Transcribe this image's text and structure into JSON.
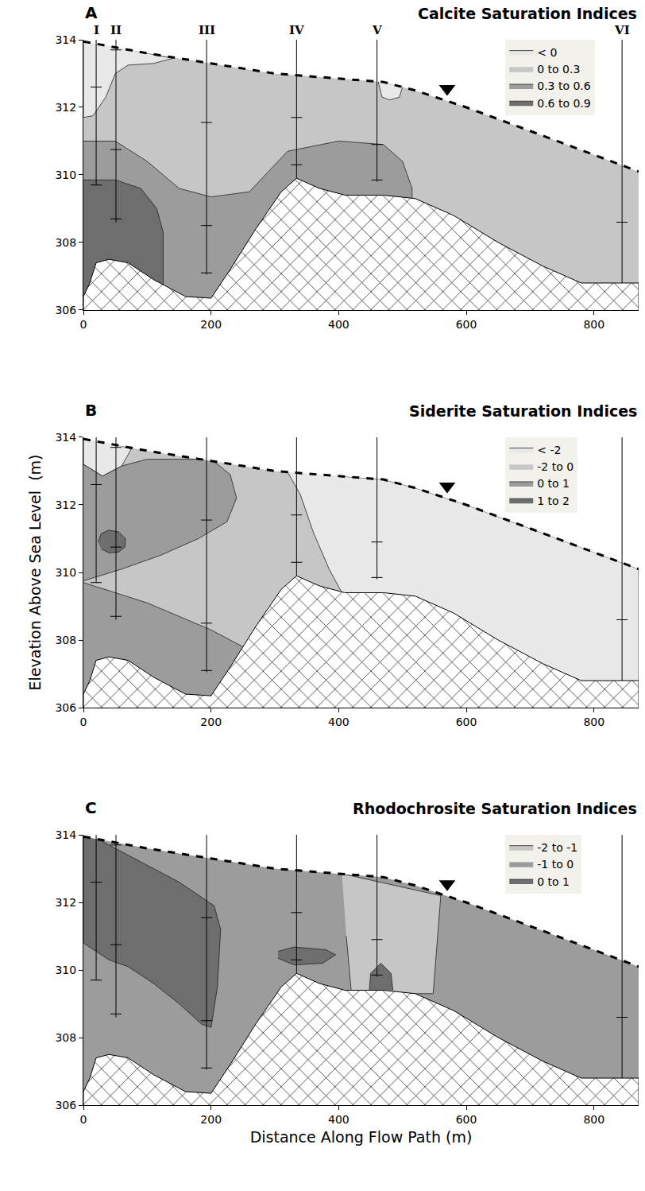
{
  "chart_data": {
    "type": "cross_section",
    "xlabel": "Distance Along Flow Path (m)",
    "ylabel": "Elevation Above Sea Level  (m)",
    "xlim": [
      0,
      870
    ],
    "xticks": [
      0,
      200,
      400,
      600,
      800
    ],
    "ylim": [
      306,
      314
    ],
    "yticks": [
      306,
      308,
      310,
      312,
      314
    ],
    "surface": {
      "x": [
        0,
        100,
        200,
        300,
        400,
        470,
        520,
        600,
        700,
        800,
        870
      ],
      "y": [
        313.95,
        313.6,
        313.3,
        313.0,
        312.85,
        312.75,
        312.5,
        312.0,
        311.3,
        310.6,
        310.1
      ],
      "line_style": "dashed"
    },
    "water_table": {
      "x": 570,
      "y": 312.55,
      "marker": "triangle-down"
    },
    "bedrock": {
      "x": [
        0,
        0,
        10,
        20,
        40,
        70,
        110,
        160,
        200,
        230,
        270,
        310,
        334,
        370,
        410,
        470,
        520,
        580,
        650,
        720,
        780,
        870,
        870
      ],
      "y": [
        306,
        306.4,
        306.8,
        307.4,
        307.5,
        307.4,
        306.9,
        306.4,
        306.35,
        307.2,
        308.4,
        309.5,
        309.9,
        309.6,
        309.4,
        309.4,
        309.3,
        308.8,
        308.0,
        307.3,
        306.8,
        306.8,
        306
      ]
    },
    "wells": [
      {
        "name": "I",
        "x": 20,
        "bottom": 309.7,
        "samples": [
          312.6,
          309.7
        ]
      },
      {
        "name": "II",
        "x": 51,
        "bottom": 308.6,
        "samples": [
          313.7,
          310.75,
          308.7
        ]
      },
      {
        "name": "III",
        "x": 193,
        "bottom": 307.05,
        "samples": [
          311.55,
          308.5,
          307.1
        ]
      },
      {
        "name": "IV",
        "x": 334,
        "bottom": 309.9,
        "samples": [
          311.7,
          310.3
        ]
      },
      {
        "name": "V",
        "x": 460,
        "bottom": 309.8,
        "samples": [
          310.9,
          309.85
        ]
      },
      {
        "name": "VI",
        "x": 844,
        "bottom": 306.8,
        "samples": [
          308.6
        ]
      }
    ],
    "panels": [
      {
        "letter": "A",
        "title": "Calcite Saturation Indices",
        "legend": "top right",
        "classes": [
          {
            "name": "< 0",
            "color": "#e8e8e8",
            "regions": [
              {
                "x": [
                  0,
                  0,
                  15,
                  35,
                  50,
                  70,
                  110,
                  140,
                  100,
                  50
                ],
                "y": [
                  313.95,
                  311.7,
                  311.75,
                  312.3,
                  313.0,
                  313.25,
                  313.3,
                  313.45,
                  313.6,
                  313.8
                ]
              },
              {
                "x": [
                  462,
                  468,
                  480,
                  495,
                  500
                ],
                "y": [
                  312.75,
                  312.3,
                  312.22,
                  312.3,
                  312.6
                ]
              }
            ]
          },
          {
            "name": "0 to 0.3",
            "color": "#c6c6c6"
          },
          {
            "name": "0.3 to 0.6",
            "color": "#9c9c9c",
            "regions": [
              {
                "x": [
                  0,
                  50,
                  100,
                  150,
                  200,
                  260,
                  320,
                  400,
                  470,
                  500,
                  515,
                  515,
                  0
                ],
                "y": [
                  311.0,
                  311.0,
                  310.4,
                  309.6,
                  309.35,
                  309.5,
                  310.7,
                  311.0,
                  310.9,
                  310.4,
                  309.6,
                  306,
                  306
                ]
              }
            ]
          },
          {
            "name": "0.6 to 0.9",
            "color": "#6e6e6e",
            "regions": [
              {
                "x": [
                  0,
                  50,
                  90,
                  115,
                  125,
                  125,
                  0
                ],
                "y": [
                  309.85,
                  309.85,
                  309.6,
                  309.0,
                  308.3,
                  306,
                  306
                ]
              }
            ]
          }
        ]
      },
      {
        "letter": "B",
        "title": "Siderite Saturation Indices",
        "legend": "top right",
        "classes": [
          {
            "name": "< -2",
            "color": "#e8e8e8",
            "regions": [
              {
                "x": [
                  0,
                  0,
                  30,
                  60,
                  75,
                  50
                ],
                "y": [
                  313.95,
                  313.2,
                  312.85,
                  313.15,
                  313.65,
                  313.8
                ]
              },
              {
                "x": [
                  320,
                  340,
                  360,
                  385,
                  405,
                  405,
                  870,
                  870,
                  800,
                  700,
                  600,
                  520,
                  470,
                  400
                ],
                "y": [
                  312.97,
                  312.3,
                  311.2,
                  310.1,
                  309.4,
                  306,
                  306,
                  310.1,
                  310.6,
                  311.3,
                  312.0,
                  312.5,
                  312.75,
                  312.85
                ]
              }
            ]
          },
          {
            "name": "-2 to 0",
            "color": "#c6c6c6"
          },
          {
            "name": "0 to 1",
            "color": "#9c9c9c",
            "regions": [
              {
                "x": [
                  0,
                  30,
                  60,
                  100,
                  200,
                  230,
                  240,
                  225,
                  180,
                  120,
                  60,
                  0
                ],
                "y": [
                  313.2,
                  312.85,
                  313.15,
                  313.35,
                  313.35,
                  312.9,
                  312.2,
                  311.5,
                  311.0,
                  310.5,
                  310.1,
                  309.75
                ]
              },
              {
                "x": [
                  0,
                  100,
                  200,
                  270,
                  270,
                  0
                ],
                "y": [
                  309.7,
                  309.1,
                  308.3,
                  307.6,
                  306,
                  306
                ]
              }
            ]
          },
          {
            "name": "1 to 2",
            "color": "#6e6e6e",
            "regions": [
              {
                "x": [
                  23,
                  28,
                  40,
                  55,
                  66,
                  65,
                  55,
                  40,
                  28
                ],
                "y": [
                  310.9,
                  311.15,
                  311.25,
                  311.2,
                  311.0,
                  310.75,
                  310.6,
                  310.58,
                  310.7
                ]
              }
            ]
          }
        ]
      },
      {
        "letter": "C",
        "title": "Rhodochrosite Saturation Indices",
        "legend": "top right",
        "classes": [
          {
            "name": "-2 to -1",
            "color": "#c6c6c6",
            "regions": [
              {
                "x": [
                  405,
                  560,
                  555,
                  548,
                  420,
                  412
                ],
                "y": [
                  312.85,
                  312.2,
                  311.0,
                  309.3,
                  309.3,
                  311.0
                ]
              }
            ]
          },
          {
            "name": "-1 to 0",
            "color": "#9c9c9c"
          },
          {
            "name": "0 to 1",
            "color": "#6e6e6e",
            "regions": [
              {
                "x": [
                  0,
                  0,
                  40,
                  70,
                  110,
                  150,
                  185,
                  200,
                  210,
                  215,
                  205,
                  150,
                  80,
                  20
                ],
                "y": [
                  313.95,
                  310.8,
                  310.3,
                  310.1,
                  309.6,
                  309.0,
                  308.4,
                  308.3,
                  309.5,
                  311.2,
                  311.9,
                  312.6,
                  313.3,
                  313.9
                ]
              },
              {
                "x": [
                  305,
                  330,
                  380,
                  395,
                  375,
                  330,
                  305
                ],
                "y": [
                  310.55,
                  310.68,
                  310.6,
                  310.45,
                  310.2,
                  310.15,
                  310.35
                ]
              },
              {
                "x": [
                  448,
                  450,
                  466,
                  482,
                  485
                ],
                "y": [
                  309.4,
                  309.9,
                  310.2,
                  309.9,
                  309.4
                ]
              }
            ]
          }
        ]
      }
    ]
  }
}
